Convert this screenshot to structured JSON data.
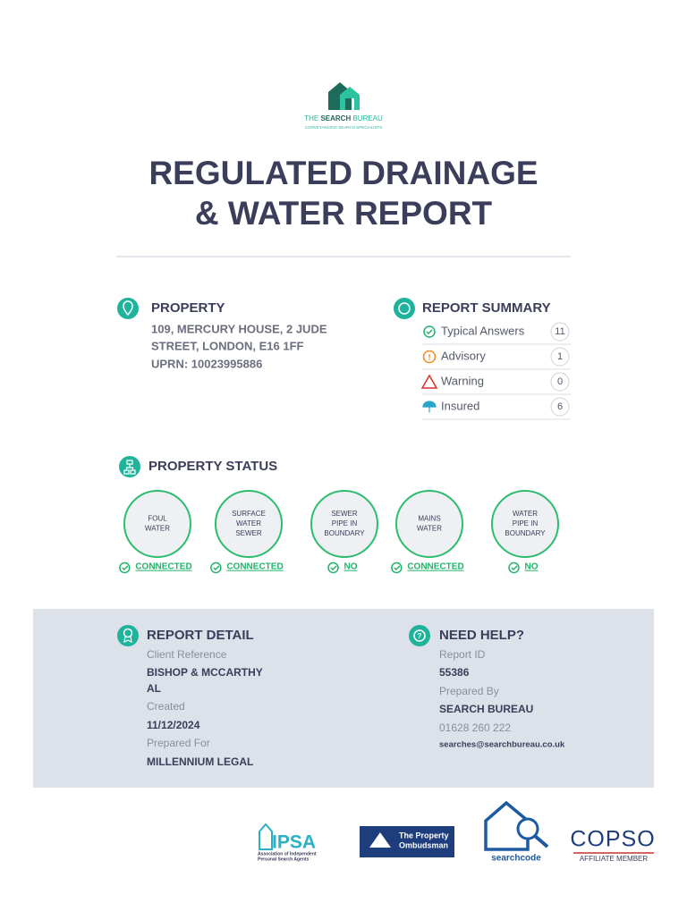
{
  "logo": {
    "prefix": "THE",
    "bold": "SEARCH",
    "suffix": "BUREAU",
    "tagline": "CONVEYANCING SEARCH SPECIALISTS"
  },
  "title": [
    "REGULATED DRAINAGE",
    "& WATER REPORT"
  ],
  "property": {
    "heading": "PROPERTY",
    "address": [
      "109, MERCURY HOUSE, 2 JUDE",
      "STREET, LONDON, E16 1FF"
    ],
    "uprn": "UPRN: 10023995886"
  },
  "summary": {
    "heading": "REPORT SUMMARY",
    "items": [
      {
        "label": "Typical Answers",
        "count": 11
      },
      {
        "label": "Advisory",
        "count": 1
      },
      {
        "label": "Warning",
        "count": 0
      },
      {
        "label": "Insured",
        "count": 6
      }
    ]
  },
  "status": {
    "heading": "PROPERTY STATUS",
    "items": [
      {
        "label": [
          "FOUL",
          "WATER"
        ],
        "result": "CONNECTED"
      },
      {
        "label": [
          "SURFACE",
          "WATER",
          "SEWER"
        ],
        "result": "CONNECTED"
      },
      {
        "label": [
          "SEWER",
          "PIPE IN",
          "BOUNDARY"
        ],
        "result": "NO"
      },
      {
        "label": [
          "MAINS",
          "WATER"
        ],
        "result": "CONNECTED"
      },
      {
        "label": [
          "WATER",
          "PIPE IN",
          "BOUNDARY"
        ],
        "result": "NO"
      }
    ]
  },
  "detail": {
    "heading": "REPORT DETAIL",
    "fields": [
      {
        "label": "Client Reference",
        "value": [
          "BISHOP & MCCARTHY",
          "AL"
        ]
      },
      {
        "label": "Created",
        "value": [
          "11/12/2024"
        ]
      },
      {
        "label": "Prepared For",
        "value": [
          "MILLENNIUM LEGAL"
        ]
      }
    ]
  },
  "help": {
    "heading": "NEED HELP?",
    "fields": [
      {
        "label": "Report ID",
        "value": "55386"
      },
      {
        "label": "Prepared By",
        "value": "SEARCH BUREAU"
      }
    ],
    "phone": "01628 260 222",
    "email": "searches@searchbureau.co.uk"
  },
  "footer": {
    "ipsa": "IPSA",
    "ipsa_sub": [
      "Association of Independent",
      "Personal Search Agents"
    ],
    "ombudsman": [
      "The Property",
      "Ombudsman"
    ],
    "searchcode": "searchcode",
    "copso": "COPSO",
    "copso_sub": "AFFILIATE MEMBER"
  }
}
